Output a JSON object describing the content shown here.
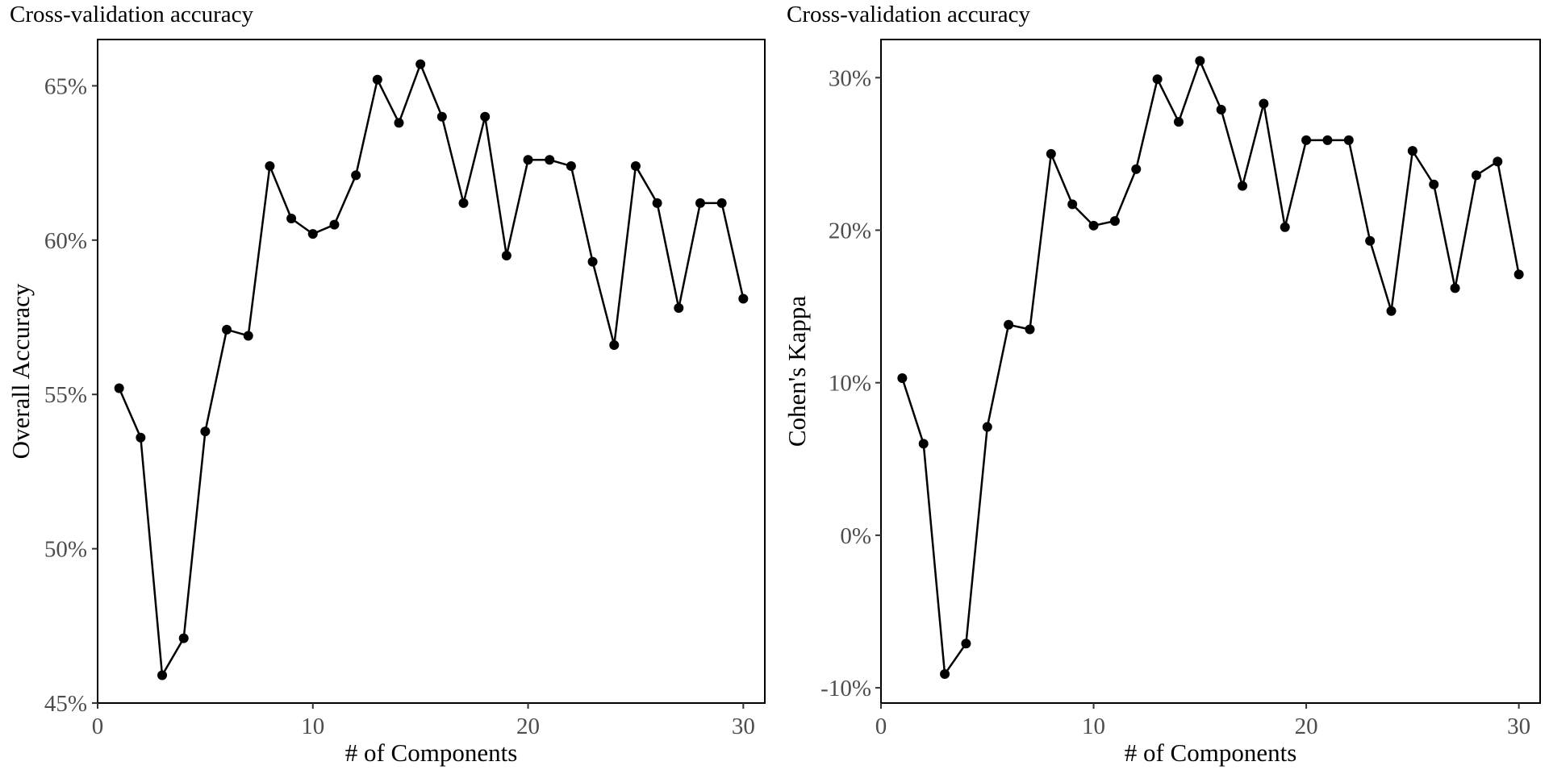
{
  "chart_data": [
    {
      "type": "line",
      "title": "Cross-validation accuracy",
      "xlabel": "# of Components",
      "ylabel": "Overall Accuracy",
      "xlim": [
        0,
        31
      ],
      "ylim": [
        45,
        66.5
      ],
      "x_ticks": [
        0,
        10,
        20,
        30
      ],
      "y_ticks": [
        45,
        50,
        55,
        60,
        65
      ],
      "y_tick_labels": [
        "45%",
        "50%",
        "55%",
        "60%",
        "65%"
      ],
      "grid": false,
      "series": [
        {
          "x": [
            1,
            2,
            3,
            4,
            5,
            6,
            7,
            8,
            9,
            10,
            11,
            12,
            13,
            14,
            15,
            16,
            17,
            18,
            19,
            20,
            21,
            22,
            23,
            24,
            25,
            26,
            27,
            28,
            29,
            30
          ],
          "values": [
            55.2,
            53.6,
            45.9,
            47.1,
            53.8,
            57.1,
            56.9,
            62.4,
            60.7,
            60.2,
            60.5,
            62.1,
            65.2,
            63.8,
            65.7,
            64.0,
            61.2,
            64.0,
            59.5,
            62.6,
            62.6,
            62.4,
            59.3,
            56.6,
            62.4,
            61.2,
            57.8,
            61.2,
            61.2,
            58.1
          ]
        }
      ]
    },
    {
      "type": "line",
      "title": "Cross-validation accuracy",
      "xlabel": "# of Components",
      "ylabel": "Cohen's Kappa",
      "xlim": [
        0,
        31
      ],
      "ylim": [
        -11,
        32.5
      ],
      "x_ticks": [
        0,
        10,
        20,
        30
      ],
      "y_ticks": [
        -10,
        0,
        10,
        20,
        30
      ],
      "y_tick_labels": [
        "-10%",
        "0%",
        "10%",
        "20%",
        "30%"
      ],
      "grid": false,
      "series": [
        {
          "x": [
            1,
            2,
            3,
            4,
            5,
            6,
            7,
            8,
            9,
            10,
            11,
            12,
            13,
            14,
            15,
            16,
            17,
            18,
            19,
            20,
            21,
            22,
            23,
            24,
            25,
            26,
            27,
            28,
            29,
            30
          ],
          "values": [
            10.3,
            6.0,
            -9.1,
            -7.1,
            7.1,
            13.8,
            13.5,
            25.0,
            21.7,
            20.3,
            20.6,
            24.0,
            29.9,
            27.1,
            31.1,
            27.9,
            22.9,
            28.3,
            20.2,
            25.9,
            25.9,
            25.9,
            19.3,
            14.7,
            25.2,
            23.0,
            16.2,
            23.6,
            24.5,
            17.1
          ]
        }
      ]
    }
  ]
}
